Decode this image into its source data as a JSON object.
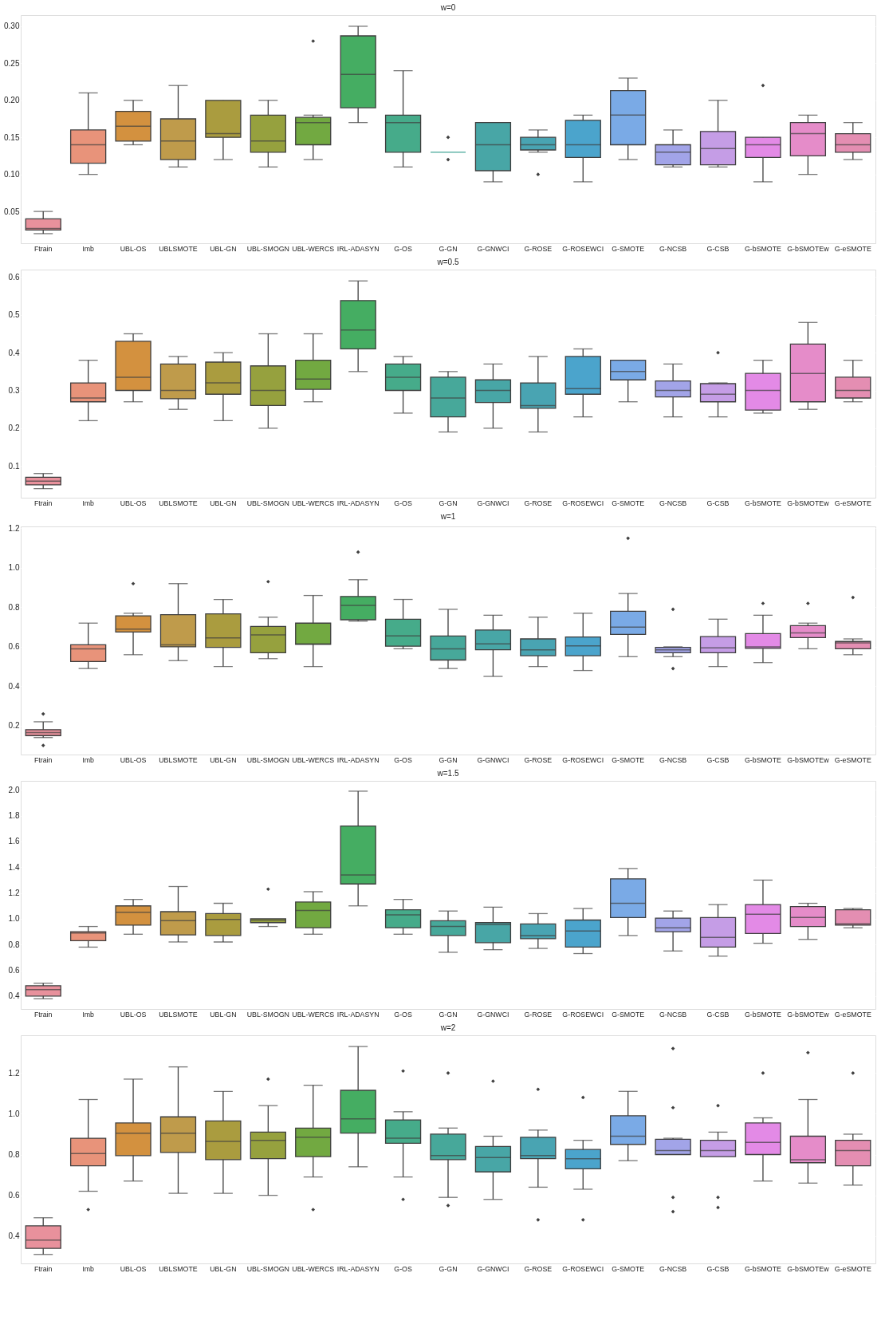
{
  "chart_data": [
    {
      "type": "box",
      "title": "w=0",
      "grid": "y",
      "ylim": [
        0.007,
        0.315
      ],
      "yticks": [
        0.05,
        {
          "value": 0.1,
          "label": "0.10"
        },
        0.15,
        {
          "value": 0.2,
          "label": "0.20"
        },
        0.25,
        {
          "value": 0.3,
          "label": "0.30"
        }
      ],
      "categories": [
        "Ftrain",
        "Imb",
        "UBL-OS",
        "UBLSMOTE",
        "UBL-GN",
        "UBL-SMOGN",
        "UBL-WERCS",
        "IRL-ADASYN",
        "G-OS",
        "G-GN",
        "G-GNWCI",
        "G-ROSE",
        "G-ROSEWCI",
        "G-SMOTE",
        "G-NCSB",
        "G-CSB",
        "G-bSMOTE",
        "G-bSMOTEw",
        "G-eSMOTE"
      ],
      "colors": [
        "#e8919c",
        "#e8937a",
        "#d3913f",
        "#bf9b4b",
        "#aa9c3f",
        "#96a13e",
        "#72a941",
        "#45ad62",
        "#46ab8a",
        "#47a89a",
        "#48a6a6",
        "#49a4b2",
        "#4ba4cc",
        "#7aaae6",
        "#a2a4e8",
        "#c59de6",
        "#e38ae6",
        "#e58cc9",
        "#e48eb2"
      ],
      "boxes": [
        {
          "low": 0.02,
          "q1": 0.025,
          "median": 0.027,
          "q3": 0.04,
          "high": 0.05
        },
        {
          "low": 0.1,
          "q1": 0.115,
          "median": 0.14,
          "q3": 0.16,
          "high": 0.21
        },
        {
          "low": 0.14,
          "q1": 0.145,
          "median": 0.165,
          "q3": 0.185,
          "high": 0.2
        },
        {
          "low": 0.11,
          "q1": 0.12,
          "median": 0.145,
          "q3": 0.175,
          "high": 0.22
        },
        {
          "low": 0.12,
          "q1": 0.15,
          "median": 0.155,
          "q3": 0.2,
          "high": 0.2
        },
        {
          "low": 0.11,
          "q1": 0.13,
          "median": 0.145,
          "q3": 0.18,
          "high": 0.2
        },
        {
          "low": 0.12,
          "q1": 0.14,
          "median": 0.17,
          "q3": 0.177,
          "high": 0.18,
          "outliers": [
            0.28
          ]
        },
        {
          "low": 0.17,
          "q1": 0.19,
          "median": 0.235,
          "q3": 0.287,
          "high": 0.3
        },
        {
          "low": 0.11,
          "q1": 0.13,
          "median": 0.17,
          "q3": 0.18,
          "high": 0.24
        },
        {
          "low": 0.13,
          "q1": 0.13,
          "median": 0.13,
          "q3": 0.13,
          "high": 0.13,
          "outliers": [
            0.15,
            0.12
          ]
        },
        {
          "low": 0.09,
          "q1": 0.105,
          "median": 0.14,
          "q3": 0.17,
          "high": 0.17
        },
        {
          "low": 0.13,
          "q1": 0.133,
          "median": 0.14,
          "q3": 0.15,
          "high": 0.16,
          "outliers": [
            0.1
          ]
        },
        {
          "low": 0.09,
          "q1": 0.123,
          "median": 0.14,
          "q3": 0.173,
          "high": 0.18
        },
        {
          "low": 0.12,
          "q1": 0.14,
          "median": 0.18,
          "q3": 0.213,
          "high": 0.23
        },
        {
          "low": 0.11,
          "q1": 0.113,
          "median": 0.13,
          "q3": 0.14,
          "high": 0.16
        },
        {
          "low": 0.11,
          "q1": 0.113,
          "median": 0.135,
          "q3": 0.158,
          "high": 0.2
        },
        {
          "low": 0.09,
          "q1": 0.123,
          "median": 0.14,
          "q3": 0.15,
          "high": 0.15,
          "outliers": [
            0.22
          ]
        },
        {
          "low": 0.1,
          "q1": 0.125,
          "median": 0.155,
          "q3": 0.17,
          "high": 0.18
        },
        {
          "low": 0.12,
          "q1": 0.13,
          "median": 0.14,
          "q3": 0.155,
          "high": 0.17
        }
      ]
    },
    {
      "type": "box",
      "title": "w=0.5",
      "grid": "y",
      "ylim": [
        0.016,
        0.62
      ],
      "yticks": [
        0.1,
        0.2,
        0.3,
        0.4,
        0.5,
        0.6
      ],
      "categories": [
        "Ftrain",
        "Imb",
        "UBL-OS",
        "UBLSMOTE",
        "UBL-GN",
        "UBL-SMOGN",
        "UBL-WERCS",
        "IRL-ADASYN",
        "G-OS",
        "G-GN",
        "G-GNWCI",
        "G-ROSE",
        "G-ROSEWCI",
        "G-SMOTE",
        "G-NCSB",
        "G-CSB",
        "G-bSMOTE",
        "G-bSMOTEw",
        "G-eSMOTE"
      ],
      "colors": [
        "#e8919c",
        "#e8937a",
        "#d3913f",
        "#bf9b4b",
        "#aa9c3f",
        "#96a13e",
        "#72a941",
        "#45ad62",
        "#46ab8a",
        "#47a89a",
        "#48a6a6",
        "#49a4b2",
        "#4ba4cc",
        "#7aaae6",
        "#a2a4e8",
        "#c59de6",
        "#e38ae6",
        "#e58cc9",
        "#e48eb2"
      ],
      "boxes": [
        {
          "low": 0.04,
          "q1": 0.05,
          "median": 0.06,
          "q3": 0.07,
          "high": 0.08
        },
        {
          "low": 0.22,
          "q1": 0.27,
          "median": 0.28,
          "q3": 0.32,
          "high": 0.38
        },
        {
          "low": 0.27,
          "q1": 0.3,
          "median": 0.335,
          "q3": 0.43,
          "high": 0.45
        },
        {
          "low": 0.25,
          "q1": 0.278,
          "median": 0.3,
          "q3": 0.37,
          "high": 0.39
        },
        {
          "low": 0.22,
          "q1": 0.29,
          "median": 0.32,
          "q3": 0.375,
          "high": 0.4
        },
        {
          "low": 0.2,
          "q1": 0.26,
          "median": 0.3,
          "q3": 0.365,
          "high": 0.45
        },
        {
          "low": 0.27,
          "q1": 0.303,
          "median": 0.33,
          "q3": 0.38,
          "high": 0.45
        },
        {
          "low": 0.35,
          "q1": 0.41,
          "median": 0.46,
          "q3": 0.538,
          "high": 0.59
        },
        {
          "low": 0.24,
          "q1": 0.3,
          "median": 0.335,
          "q3": 0.37,
          "high": 0.39
        },
        {
          "low": 0.19,
          "q1": 0.23,
          "median": 0.28,
          "q3": 0.335,
          "high": 0.35
        },
        {
          "low": 0.2,
          "q1": 0.268,
          "median": 0.3,
          "q3": 0.328,
          "high": 0.37
        },
        {
          "low": 0.19,
          "q1": 0.253,
          "median": 0.26,
          "q3": 0.32,
          "high": 0.39
        },
        {
          "low": 0.23,
          "q1": 0.29,
          "median": 0.305,
          "q3": 0.39,
          "high": 0.41
        },
        {
          "low": 0.27,
          "q1": 0.328,
          "median": 0.35,
          "q3": 0.38,
          "high": 0.38
        },
        {
          "low": 0.23,
          "q1": 0.283,
          "median": 0.3,
          "q3": 0.325,
          "high": 0.37
        },
        {
          "low": 0.23,
          "q1": 0.27,
          "median": 0.29,
          "q3": 0.318,
          "high": 0.32,
          "outliers": [
            0.4
          ]
        },
        {
          "low": 0.24,
          "q1": 0.248,
          "median": 0.3,
          "q3": 0.345,
          "high": 0.38
        },
        {
          "low": 0.25,
          "q1": 0.27,
          "median": 0.345,
          "q3": 0.423,
          "high": 0.48
        },
        {
          "low": 0.27,
          "q1": 0.28,
          "median": 0.3,
          "q3": 0.335,
          "high": 0.38
        }
      ]
    },
    {
      "type": "box",
      "title": "w=1",
      "grid": "y",
      "ylim": [
        0.054,
        1.21
      ],
      "yticks": [
        0.2,
        0.4,
        0.6,
        0.8,
        {
          "value": 1.0,
          "label": "1.0"
        },
        1.2
      ],
      "categories": [
        "Ftrain",
        "Imb",
        "UBL-OS",
        "UBLSMOTE",
        "UBL-GN",
        "UBL-SMOGN",
        "UBL-WERCS",
        "IRL-ADASYN",
        "G-OS",
        "G-GN",
        "G-GNWCI",
        "G-ROSE",
        "G-ROSEWCI",
        "G-SMOTE",
        "G-NCSB",
        "G-CSB",
        "G-bSMOTE",
        "G-bSMOTEw",
        "G-eSMOTE"
      ],
      "colors": [
        "#e8919c",
        "#e8937a",
        "#d3913f",
        "#bf9b4b",
        "#aa9c3f",
        "#96a13e",
        "#72a941",
        "#45ad62",
        "#46ab8a",
        "#47a89a",
        "#48a6a6",
        "#49a4b2",
        "#4ba4cc",
        "#7aaae6",
        "#a2a4e8",
        "#c59de6",
        "#e38ae6",
        "#e58cc9",
        "#e48eb2"
      ],
      "boxes": [
        {
          "low": 0.14,
          "q1": 0.15,
          "median": 0.165,
          "q3": 0.18,
          "high": 0.22,
          "outliers": [
            0.26,
            0.1
          ]
        },
        {
          "low": 0.49,
          "q1": 0.525,
          "median": 0.59,
          "q3": 0.61,
          "high": 0.72
        },
        {
          "low": 0.56,
          "q1": 0.675,
          "median": 0.69,
          "q3": 0.757,
          "high": 0.77,
          "outliers": [
            0.92
          ]
        },
        {
          "low": 0.53,
          "q1": 0.6,
          "median": 0.61,
          "q3": 0.763,
          "high": 0.92
        },
        {
          "low": 0.5,
          "q1": 0.597,
          "median": 0.645,
          "q3": 0.767,
          "high": 0.84
        },
        {
          "low": 0.54,
          "q1": 0.57,
          "median": 0.66,
          "q3": 0.703,
          "high": 0.75,
          "outliers": [
            0.93
          ]
        },
        {
          "low": 0.5,
          "q1": 0.612,
          "median": 0.615,
          "q3": 0.72,
          "high": 0.86
        },
        {
          "low": 0.73,
          "q1": 0.737,
          "median": 0.81,
          "q3": 0.855,
          "high": 0.94,
          "outliers": [
            1.08
          ]
        },
        {
          "low": 0.59,
          "q1": 0.603,
          "median": 0.655,
          "q3": 0.74,
          "high": 0.84
        },
        {
          "low": 0.49,
          "q1": 0.533,
          "median": 0.59,
          "q3": 0.655,
          "high": 0.79
        },
        {
          "low": 0.45,
          "q1": 0.585,
          "median": 0.615,
          "q3": 0.685,
          "high": 0.76
        },
        {
          "low": 0.5,
          "q1": 0.555,
          "median": 0.585,
          "q3": 0.64,
          "high": 0.75
        },
        {
          "low": 0.48,
          "q1": 0.555,
          "median": 0.605,
          "q3": 0.65,
          "high": 0.77
        },
        {
          "low": 0.55,
          "q1": 0.663,
          "median": 0.7,
          "q3": 0.78,
          "high": 0.87,
          "outliers": [
            1.15
          ]
        },
        {
          "low": 0.55,
          "q1": 0.57,
          "median": 0.585,
          "q3": 0.597,
          "high": 0.6,
          "outliers": [
            0.79,
            0.49
          ]
        },
        {
          "low": 0.5,
          "q1": 0.57,
          "median": 0.595,
          "q3": 0.652,
          "high": 0.74
        },
        {
          "low": 0.52,
          "q1": 0.592,
          "median": 0.6,
          "q3": 0.667,
          "high": 0.76,
          "outliers": [
            0.82
          ]
        },
        {
          "low": 0.59,
          "q1": 0.647,
          "median": 0.67,
          "q3": 0.707,
          "high": 0.72,
          "outliers": [
            0.82
          ]
        },
        {
          "low": 0.56,
          "q1": 0.59,
          "median": 0.62,
          "q3": 0.627,
          "high": 0.64,
          "outliers": [
            0.85
          ]
        }
      ]
    },
    {
      "type": "box",
      "title": "w=1.5",
      "grid": "y",
      "ylim": [
        0.3,
        2.07
      ],
      "yticks": [
        0.4,
        0.6,
        0.8,
        {
          "value": 1.0,
          "label": "1.0"
        },
        1.2,
        1.4,
        1.6,
        1.8,
        {
          "value": 2.0,
          "label": "2.0"
        }
      ],
      "categories": [
        "Ftrain",
        "Imb",
        "UBL-OS",
        "UBLSMOTE",
        "UBL-GN",
        "UBL-SMOGN",
        "UBL-WERCS",
        "IRL-ADASYN",
        "G-OS",
        "G-GN",
        "G-GNWCI",
        "G-ROSE",
        "G-ROSEWCI",
        "G-SMOTE",
        "G-NCSB",
        "G-CSB",
        "G-bSMOTE",
        "G-bSMOTEw",
        "G-eSMOTE"
      ],
      "colors": [
        "#e8919c",
        "#e8937a",
        "#d3913f",
        "#bf9b4b",
        "#aa9c3f",
        "#96a13e",
        "#72a941",
        "#45ad62",
        "#46ab8a",
        "#47a89a",
        "#48a6a6",
        "#49a4b2",
        "#4ba4cc",
        "#7aaae6",
        "#a2a4e8",
        "#c59de6",
        "#e38ae6",
        "#e58cc9",
        "#e48eb2"
      ],
      "boxes": [
        {
          "low": 0.38,
          "q1": 0.4,
          "median": 0.45,
          "q3": 0.48,
          "high": 0.5
        },
        {
          "low": 0.78,
          "q1": 0.83,
          "median": 0.89,
          "q3": 0.9,
          "high": 0.94
        },
        {
          "low": 0.88,
          "q1": 0.95,
          "median": 1.05,
          "q3": 1.1,
          "high": 1.15
        },
        {
          "low": 0.82,
          "q1": 0.875,
          "median": 0.985,
          "q3": 1.055,
          "high": 1.25
        },
        {
          "low": 0.82,
          "q1": 0.87,
          "median": 0.995,
          "q3": 1.04,
          "high": 1.12
        },
        {
          "low": 0.94,
          "q1": 0.97,
          "median": 0.99,
          "q3": 1.0,
          "high": 1.0,
          "outliers": [
            1.23
          ]
        },
        {
          "low": 0.88,
          "q1": 0.93,
          "median": 1.065,
          "q3": 1.13,
          "high": 1.21
        },
        {
          "low": 1.1,
          "q1": 1.27,
          "median": 1.34,
          "q3": 1.72,
          "high": 1.99
        },
        {
          "low": 0.88,
          "q1": 0.93,
          "median": 1.03,
          "q3": 1.07,
          "high": 1.15
        },
        {
          "low": 0.74,
          "q1": 0.87,
          "median": 0.94,
          "q3": 0.985,
          "high": 1.06
        },
        {
          "low": 0.76,
          "q1": 0.815,
          "median": 0.955,
          "q3": 0.97,
          "high": 1.09
        },
        {
          "low": 0.77,
          "q1": 0.845,
          "median": 0.87,
          "q3": 0.96,
          "high": 1.04
        },
        {
          "low": 0.73,
          "q1": 0.78,
          "median": 0.905,
          "q3": 0.99,
          "high": 1.08
        },
        {
          "low": 0.87,
          "q1": 1.01,
          "median": 1.12,
          "q3": 1.31,
          "high": 1.39
        },
        {
          "low": 0.75,
          "q1": 0.9,
          "median": 0.93,
          "q3": 1.005,
          "high": 1.06
        },
        {
          "low": 0.71,
          "q1": 0.78,
          "median": 0.855,
          "q3": 1.01,
          "high": 1.11
        },
        {
          "low": 0.81,
          "q1": 0.885,
          "median": 1.035,
          "q3": 1.11,
          "high": 1.3
        },
        {
          "low": 0.84,
          "q1": 0.94,
          "median": 1.01,
          "q3": 1.095,
          "high": 1.12
        },
        {
          "low": 0.93,
          "q1": 0.95,
          "median": 0.96,
          "q3": 1.07,
          "high": 1.08
        }
      ]
    },
    {
      "type": "box",
      "title": "w=2",
      "grid": "y",
      "ylim": [
        0.266,
        1.385
      ],
      "yticks": [
        0.4,
        0.6,
        0.8,
        {
          "value": 1.0,
          "label": "1.0"
        },
        1.2
      ],
      "categories": [
        "Ftrain",
        "Imb",
        "UBL-OS",
        "UBLSMOTE",
        "UBL-GN",
        "UBL-SMOGN",
        "UBL-WERCS",
        "IRL-ADASYN",
        "G-OS",
        "G-GN",
        "G-GNWCI",
        "G-ROSE",
        "G-ROSEWCI",
        "G-SMOTE",
        "G-NCSB",
        "G-CSB",
        "G-bSMOTE",
        "G-bSMOTEw",
        "G-eSMOTE"
      ],
      "colors": [
        "#e8919c",
        "#e8937a",
        "#d3913f",
        "#bf9b4b",
        "#aa9c3f",
        "#96a13e",
        "#72a941",
        "#45ad62",
        "#46ab8a",
        "#47a89a",
        "#48a6a6",
        "#49a4b2",
        "#4ba4cc",
        "#7aaae6",
        "#a2a4e8",
        "#c59de6",
        "#e38ae6",
        "#e58cc9",
        "#e48eb2"
      ],
      "boxes": [
        {
          "low": 0.31,
          "q1": 0.34,
          "median": 0.38,
          "q3": 0.45,
          "high": 0.49
        },
        {
          "low": 0.62,
          "q1": 0.745,
          "median": 0.805,
          "q3": 0.88,
          "high": 1.07,
          "outliers": [
            0.53
          ]
        },
        {
          "low": 0.67,
          "q1": 0.795,
          "median": 0.905,
          "q3": 0.955,
          "high": 1.17
        },
        {
          "low": 0.61,
          "q1": 0.81,
          "median": 0.905,
          "q3": 0.985,
          "high": 1.23
        },
        {
          "low": 0.61,
          "q1": 0.775,
          "median": 0.865,
          "q3": 0.965,
          "high": 1.11
        },
        {
          "low": 0.6,
          "q1": 0.78,
          "median": 0.87,
          "q3": 0.91,
          "high": 1.04,
          "outliers": [
            1.17
          ]
        },
        {
          "low": 0.69,
          "q1": 0.79,
          "median": 0.885,
          "q3": 0.93,
          "high": 1.14,
          "outliers": [
            0.53
          ]
        },
        {
          "low": 0.74,
          "q1": 0.905,
          "median": 0.975,
          "q3": 1.115,
          "high": 1.33
        },
        {
          "low": 0.69,
          "q1": 0.855,
          "median": 0.88,
          "q3": 0.97,
          "high": 1.01,
          "outliers": [
            1.21,
            0.58
          ]
        },
        {
          "low": 0.59,
          "q1": 0.775,
          "median": 0.795,
          "q3": 0.9,
          "high": 0.93,
          "outliers": [
            1.2,
            0.55
          ]
        },
        {
          "low": 0.58,
          "q1": 0.715,
          "median": 0.785,
          "q3": 0.84,
          "high": 0.89,
          "outliers": [
            1.16
          ]
        },
        {
          "low": 0.64,
          "q1": 0.78,
          "median": 0.795,
          "q3": 0.885,
          "high": 0.92,
          "outliers": [
            1.12,
            0.48
          ]
        },
        {
          "low": 0.63,
          "q1": 0.73,
          "median": 0.78,
          "q3": 0.825,
          "high": 0.87,
          "outliers": [
            1.08,
            0.48
          ]
        },
        {
          "low": 0.77,
          "q1": 0.85,
          "median": 0.89,
          "q3": 0.99,
          "high": 1.11
        },
        {
          "low": 0.8,
          "q1": 0.8,
          "median": 0.82,
          "q3": 0.875,
          "high": 0.88,
          "outliers": [
            1.32,
            1.03,
            0.59,
            0.52
          ]
        },
        {
          "low": 0.79,
          "q1": 0.79,
          "median": 0.82,
          "q3": 0.87,
          "high": 0.91,
          "outliers": [
            1.04,
            0.59,
            0.54
          ]
        },
        {
          "low": 0.67,
          "q1": 0.8,
          "median": 0.86,
          "q3": 0.955,
          "high": 0.98,
          "outliers": [
            1.2
          ]
        },
        {
          "low": 0.66,
          "q1": 0.76,
          "median": 0.775,
          "q3": 0.89,
          "high": 1.07,
          "outliers": [
            1.3
          ]
        },
        {
          "low": 0.65,
          "q1": 0.745,
          "median": 0.82,
          "q3": 0.87,
          "high": 0.9,
          "outliers": [
            1.2
          ]
        }
      ]
    }
  ]
}
